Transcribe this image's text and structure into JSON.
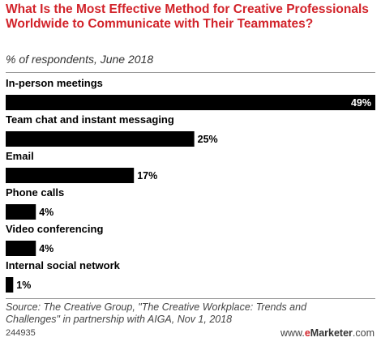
{
  "header": {
    "title": "What Is the Most Effective Method for Creative Professionals Worldwide to Communicate with Their Teammates?",
    "subtitle": "% of respondents, June 2018"
  },
  "footer": {
    "source": "Source: The Creative Group, \"The Creative Workplace: Trends and Challenges\" in partnership with AIGA, Nov 1, 2018",
    "chart_id": "244935",
    "brand_prefix": "www.",
    "brand_e": "e",
    "brand_name": "Marketer",
    "brand_suffix": ".com"
  },
  "colors": {
    "title": "#d2232a",
    "bar": "#000000",
    "value_inside": "#ffffff",
    "value_outside": "#000000"
  },
  "chart_data": {
    "type": "bar",
    "orientation": "horizontal",
    "title": "What Is the Most Effective Method for Creative Professionals Worldwide to Communicate with Their Teammates?",
    "subtitle": "% of respondents, June 2018",
    "categories": [
      "In-person meetings",
      "Team chat and instant messaging",
      "Email",
      "Phone calls",
      "Video conferencing",
      "Internal social network"
    ],
    "values": [
      49,
      25,
      17,
      4,
      4,
      1
    ],
    "value_labels": [
      "49%",
      "25%",
      "17%",
      "4%",
      "4%",
      "1%"
    ],
    "xlim": [
      0,
      49
    ],
    "grid": false,
    "legend": "none"
  }
}
